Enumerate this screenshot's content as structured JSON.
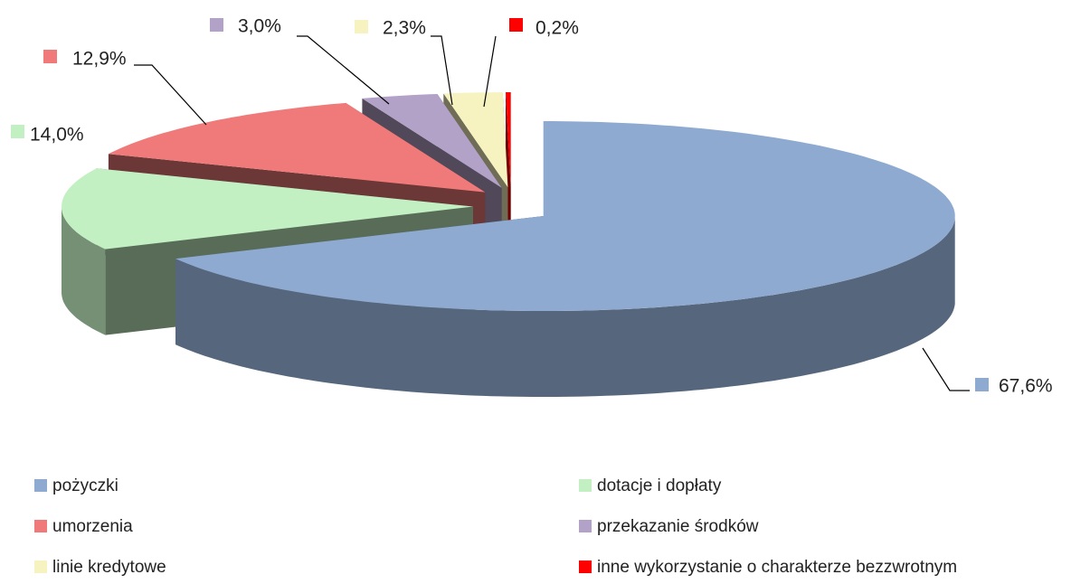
{
  "chart_data": {
    "type": "pie",
    "categories": [
      "pożyczki",
      "dotacje i dopłaty",
      "umorzenia",
      "przekazanie środków",
      "linie kredytowe",
      "inne wykorzystanie o charakterze bezzwrotnym"
    ],
    "values": [
      67.6,
      14.0,
      12.9,
      3.0,
      2.3,
      0.2
    ],
    "value_labels": [
      "67,6%",
      "14,0%",
      "12,9%",
      "3,0%",
      "2,3%",
      "0,2%"
    ],
    "colors": [
      "#8eaad0",
      "#c3f0c3",
      "#f07a7a",
      "#b3a2c7",
      "#f7f3c0",
      "#ff0000"
    ],
    "legend": "bottom"
  }
}
